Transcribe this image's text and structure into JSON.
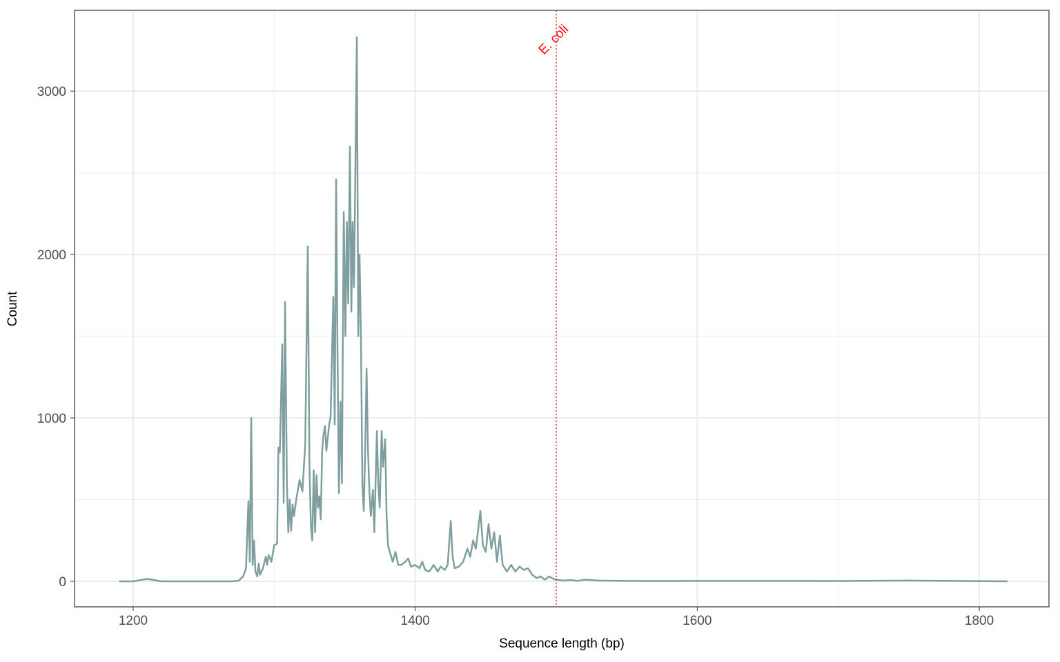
{
  "chart_data": {
    "type": "line",
    "x_label": "Sequence length (bp)",
    "y_label": "Count",
    "x": [
      1190,
      1200,
      1210,
      1220,
      1270,
      1275,
      1278,
      1280,
      1281.7,
      1282.7,
      1283.7,
      1284.7,
      1285.7,
      1286.7,
      1288,
      1289,
      1290,
      1292,
      1294,
      1295,
      1296,
      1298,
      1300,
      1302,
      1303,
      1304,
      1305.7,
      1306.7,
      1307.7,
      1309,
      1310,
      1311,
      1312,
      1313,
      1314,
      1316,
      1318,
      1320,
      1322,
      1323.8,
      1325,
      1326,
      1327,
      1328,
      1329,
      1330,
      1331,
      1332,
      1333,
      1334,
      1335,
      1336,
      1337,
      1339,
      1340,
      1341.9,
      1342.9,
      1343.9,
      1344.9,
      1345.9,
      1347,
      1348,
      1349.3,
      1350.5,
      1351.5,
      1352.5,
      1353.7,
      1354.7,
      1355.6,
      1356.6,
      1358.6,
      1359.6,
      1360.5,
      1361.5,
      1362.5,
      1363.5,
      1364.5,
      1365.5,
      1366.5,
      1367.5,
      1368.5,
      1370,
      1371,
      1372.8,
      1373.8,
      1374.8,
      1376.2,
      1377.2,
      1378.7,
      1379.7,
      1380.7,
      1382,
      1384,
      1386,
      1388,
      1390,
      1393,
      1395,
      1397,
      1400,
      1403,
      1405,
      1407,
      1410,
      1413,
      1416,
      1418,
      1421,
      1423,
      1425.2,
      1426.5,
      1428,
      1431,
      1434,
      1437,
      1439,
      1441,
      1443,
      1446.2,
      1448,
      1450,
      1452,
      1454,
      1456,
      1458,
      1460,
      1462,
      1465,
      1468,
      1471,
      1474,
      1477,
      1480,
      1483,
      1486,
      1489,
      1492,
      1495,
      1498,
      1500,
      1505,
      1510,
      1515,
      1520,
      1530,
      1540,
      1550,
      1575,
      1600,
      1660,
      1700,
      1750,
      1820
    ],
    "series": [
      {
        "name": "Count",
        "color": "#7f9f9f",
        "values": [
          0,
          0,
          15,
          0,
          0,
          5,
          30,
          80,
          490,
          120,
          1000,
          100,
          250,
          60,
          30,
          110,
          40,
          80,
          150,
          100,
          160,
          120,
          220,
          230,
          820,
          790,
          1450,
          480,
          1710,
          600,
          300,
          500,
          310,
          470,
          400,
          520,
          620,
          550,
          840,
          2050,
          700,
          340,
          250,
          680,
          300,
          650,
          450,
          520,
          380,
          800,
          900,
          950,
          800,
          960,
          1010,
          1740,
          960,
          2460,
          1400,
          540,
          1100,
          600,
          2260,
          1500,
          2200,
          1700,
          2660,
          1650,
          2200,
          1800,
          3330,
          1500,
          2000,
          1500,
          600,
          430,
          800,
          1300,
          800,
          550,
          400,
          560,
          300,
          920,
          600,
          450,
          920,
          700,
          870,
          400,
          220,
          180,
          120,
          180,
          100,
          100,
          120,
          140,
          90,
          100,
          80,
          120,
          70,
          60,
          100,
          60,
          90,
          70,
          100,
          370,
          150,
          80,
          90,
          120,
          200,
          150,
          250,
          200,
          430,
          220,
          180,
          350,
          200,
          300,
          120,
          280,
          100,
          60,
          100,
          60,
          90,
          70,
          80,
          40,
          20,
          30,
          10,
          30,
          15,
          10,
          5,
          8,
          3,
          10,
          5,
          4,
          3,
          2,
          3,
          3,
          2,
          5,
          0
        ]
      }
    ],
    "xlim": [
      1158.4,
      1849.4
    ],
    "ylim": [
      -156,
      3494
    ],
    "xticks": [
      1200,
      1400,
      1600,
      1800
    ],
    "yticks": [
      0,
      1000,
      2000,
      3000
    ],
    "x_minor_grid": [
      1300,
      1500,
      1700
    ],
    "y_minor_grid": [
      500,
      1500,
      2500
    ],
    "grid": true,
    "annotations": [
      {
        "x": 1500,
        "text": "E. coli",
        "color": "#ff0000"
      }
    ]
  }
}
